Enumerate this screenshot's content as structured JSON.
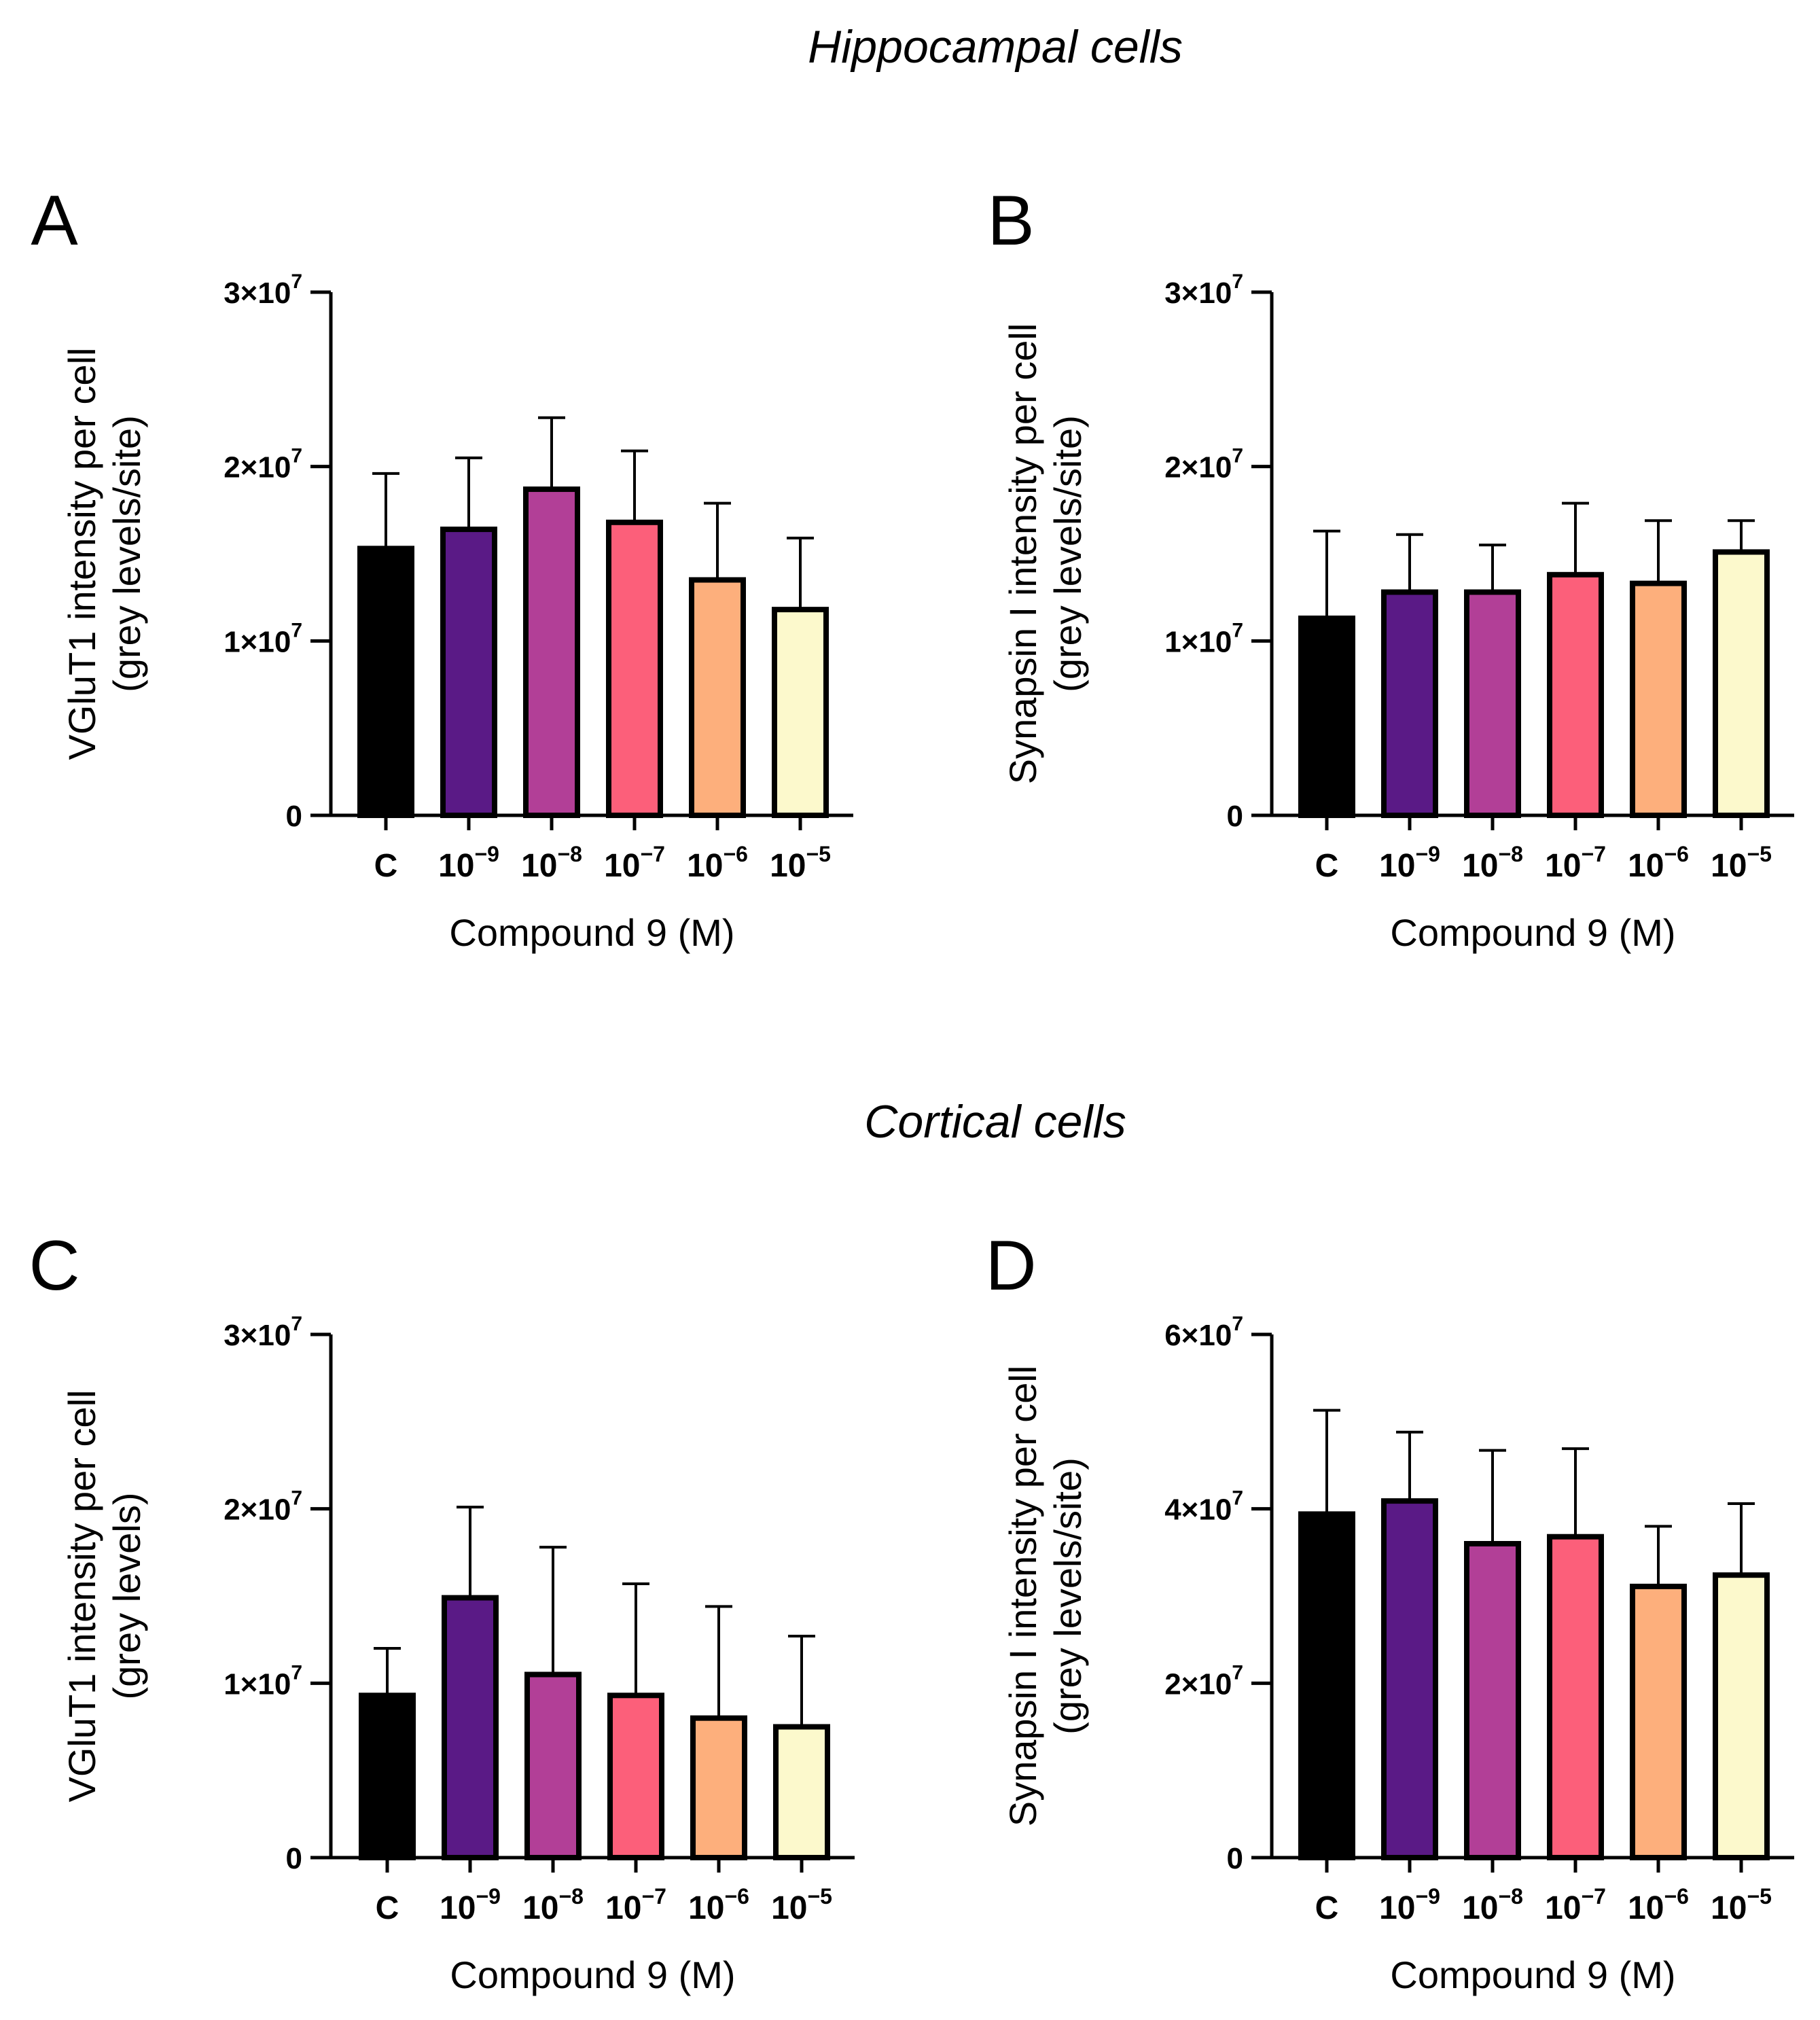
{
  "section_titles": [
    "Hippocampal cells",
    "Cortical cells"
  ],
  "chart_data": [
    {
      "panel": "A",
      "type": "bar",
      "section": "Hippocampal cells",
      "categories": [
        {
          "label": "C",
          "base": "C",
          "exp": ""
        },
        {
          "label": "10−9",
          "base": "10",
          "exp": "−9"
        },
        {
          "label": "10−8",
          "base": "10",
          "exp": "−8"
        },
        {
          "label": "10−7",
          "base": "10",
          "exp": "−7"
        },
        {
          "label": "10−6",
          "base": "10",
          "exp": "−6"
        },
        {
          "label": "10−5",
          "base": "10",
          "exp": "−5"
        }
      ],
      "values": [
        15300000,
        16400000,
        18700000,
        16800000,
        13500000,
        11800000
      ],
      "error_plus": [
        4300000,
        4100000,
        4100000,
        4100000,
        4400000,
        4100000
      ],
      "xlabel": "Compound 9 (M)",
      "ylabel_lines": [
        "VGluT1 intensity per cell",
        "(grey levels/site)"
      ],
      "ylim": [
        0,
        30000000
      ],
      "yticks": [
        {
          "value": 0,
          "base": "0",
          "exp": ""
        },
        {
          "value": 10000000,
          "base": "1×10",
          "exp": "7"
        },
        {
          "value": 20000000,
          "base": "2×10",
          "exp": "7"
        },
        {
          "value": 30000000,
          "base": "3×10",
          "exp": "7"
        }
      ]
    },
    {
      "panel": "B",
      "type": "bar",
      "section": "Hippocampal cells",
      "categories": [
        {
          "label": "C",
          "base": "C",
          "exp": ""
        },
        {
          "label": "10−9",
          "base": "10",
          "exp": "−9"
        },
        {
          "label": "10−8",
          "base": "10",
          "exp": "−8"
        },
        {
          "label": "10−7",
          "base": "10",
          "exp": "−7"
        },
        {
          "label": "10−6",
          "base": "10",
          "exp": "−6"
        },
        {
          "label": "10−5",
          "base": "10",
          "exp": "−5"
        }
      ],
      "values": [
        11300000,
        12800000,
        12800000,
        13800000,
        13300000,
        15100000
      ],
      "error_plus": [
        5000000,
        3300000,
        2700000,
        4100000,
        3600000,
        1800000
      ],
      "xlabel": "Compound 9 (M)",
      "ylabel_lines": [
        "Synapsin I intensity per cell",
        "(grey levels/site)"
      ],
      "ylim": [
        0,
        30000000
      ],
      "yticks": [
        {
          "value": 0,
          "base": "0",
          "exp": ""
        },
        {
          "value": 10000000,
          "base": "1×10",
          "exp": "7"
        },
        {
          "value": 20000000,
          "base": "2×10",
          "exp": "7"
        },
        {
          "value": 30000000,
          "base": "3×10",
          "exp": "7"
        }
      ]
    },
    {
      "panel": "C",
      "type": "bar",
      "section": "Cortical cells",
      "categories": [
        {
          "label": "C",
          "base": "C",
          "exp": ""
        },
        {
          "label": "10−9",
          "base": "10",
          "exp": "−9"
        },
        {
          "label": "10−8",
          "base": "10",
          "exp": "−8"
        },
        {
          "label": "10−7",
          "base": "10",
          "exp": "−7"
        },
        {
          "label": "10−6",
          "base": "10",
          "exp": "−6"
        },
        {
          "label": "10−5",
          "base": "10",
          "exp": "−5"
        }
      ],
      "values": [
        9300000,
        14900000,
        10500000,
        9300000,
        8000000,
        7500000
      ],
      "error_plus": [
        2700000,
        5200000,
        7300000,
        6400000,
        6400000,
        5200000
      ],
      "xlabel": "Compound 9 (M)",
      "ylabel_lines": [
        "VGluT1 intensity per cell",
        "(grey levels)"
      ],
      "ylim": [
        0,
        30000000
      ],
      "yticks": [
        {
          "value": 0,
          "base": "0",
          "exp": ""
        },
        {
          "value": 10000000,
          "base": "1×10",
          "exp": "7"
        },
        {
          "value": 20000000,
          "base": "2×10",
          "exp": "7"
        },
        {
          "value": 30000000,
          "base": "3×10",
          "exp": "7"
        }
      ]
    },
    {
      "panel": "D",
      "type": "bar",
      "section": "Cortical cells",
      "categories": [
        {
          "label": "C",
          "base": "C",
          "exp": ""
        },
        {
          "label": "10−9",
          "base": "10",
          "exp": "−9"
        },
        {
          "label": "10−8",
          "base": "10",
          "exp": "−8"
        },
        {
          "label": "10−7",
          "base": "10",
          "exp": "−7"
        },
        {
          "label": "10−6",
          "base": "10",
          "exp": "−6"
        },
        {
          "label": "10−5",
          "base": "10",
          "exp": "−5"
        }
      ],
      "values": [
        39400000,
        40900000,
        36000000,
        36800000,
        31100000,
        32400000
      ],
      "error_plus": [
        11900000,
        7900000,
        10700000,
        10100000,
        6900000,
        8200000
      ],
      "xlabel": "Compound 9 (M)",
      "ylabel_lines": [
        "Synapsin I intensity per cell",
        "(grey levels/site)"
      ],
      "ylim": [
        0,
        60000000
      ],
      "yticks": [
        {
          "value": 0,
          "base": "0",
          "exp": ""
        },
        {
          "value": 20000000,
          "base": "2×10",
          "exp": "7"
        },
        {
          "value": 40000000,
          "base": "4×10",
          "exp": "7"
        },
        {
          "value": 60000000,
          "base": "6×10",
          "exp": "7"
        }
      ]
    }
  ],
  "bar_colors": [
    "#000000",
    "#5a1a86",
    "#b23f97",
    "#fc5f7a",
    "#fdaf7c",
    "#fcf9cc"
  ],
  "bar_outline_color": "#000000"
}
